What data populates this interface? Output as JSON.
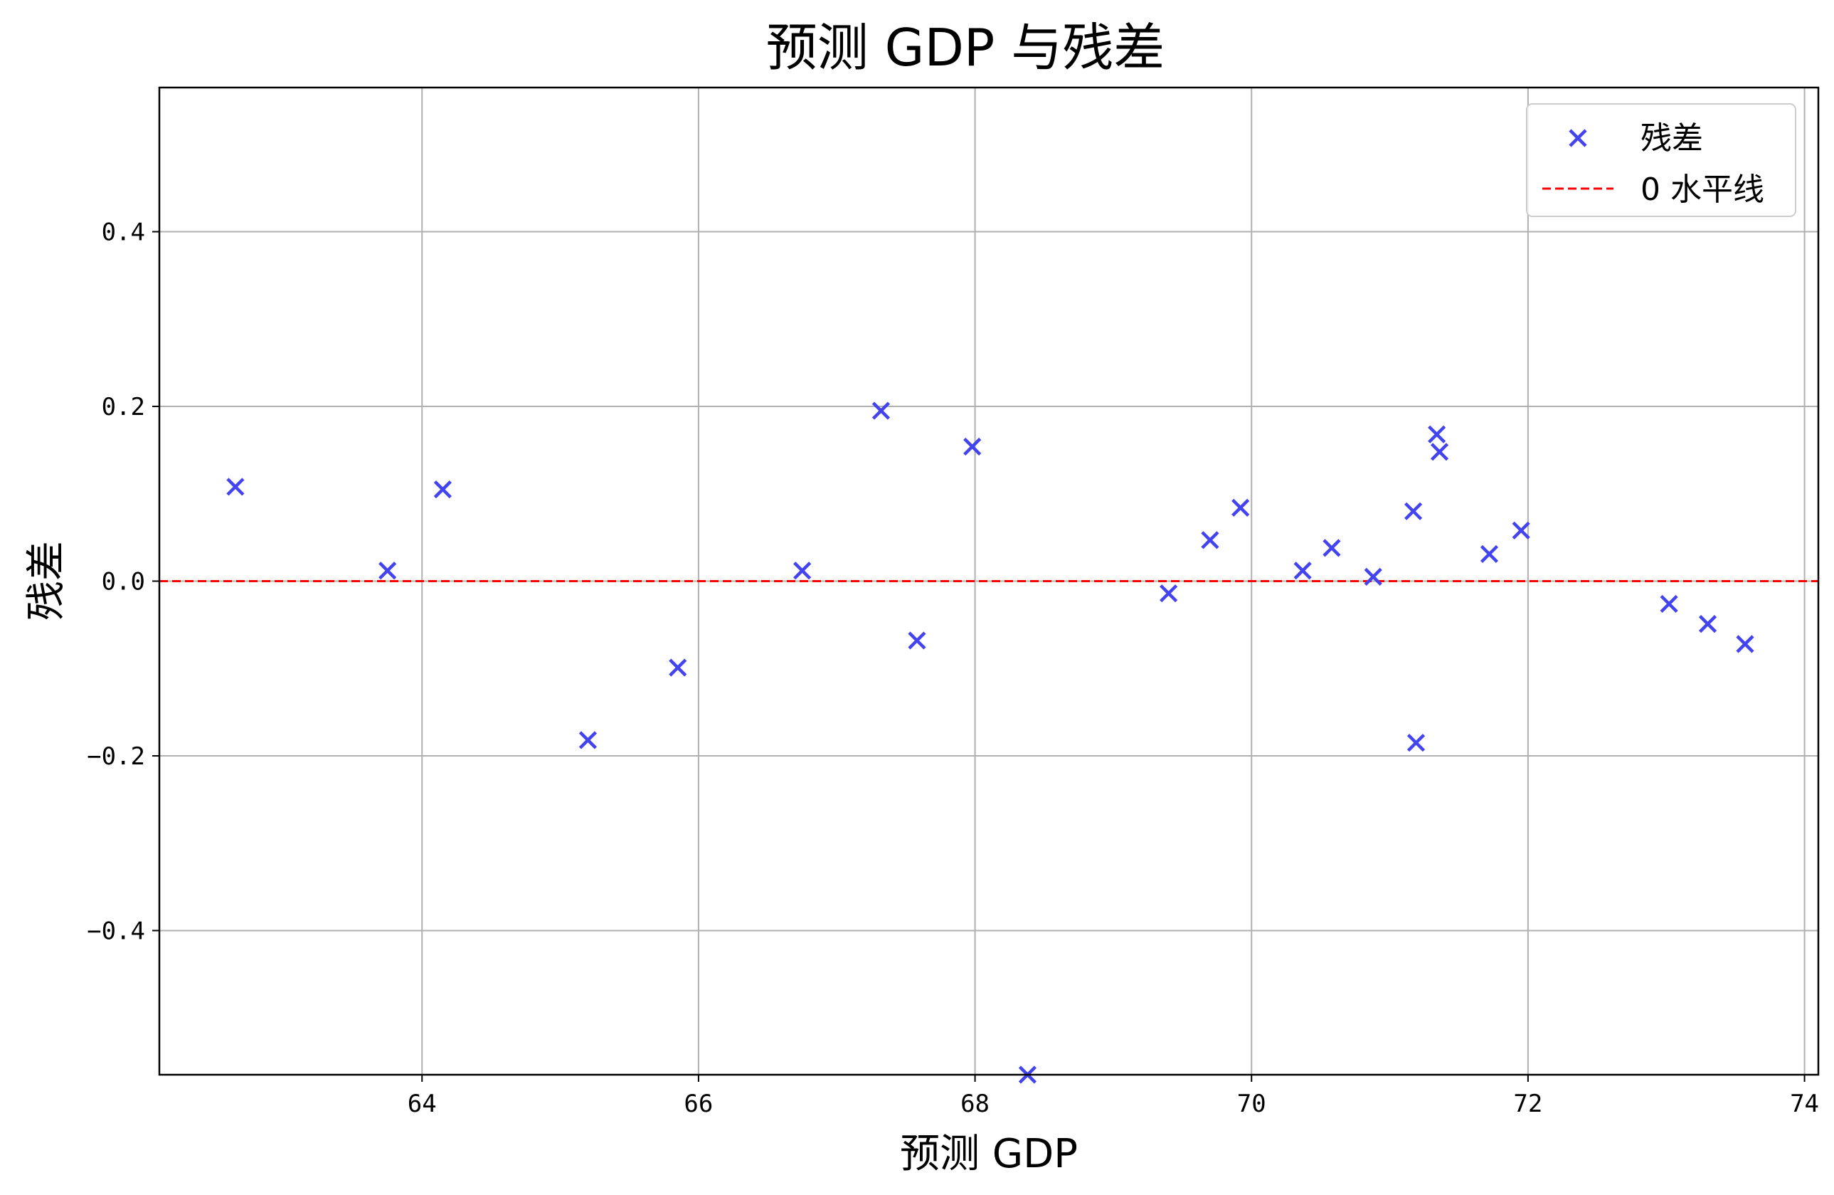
{
  "chart_data": {
    "type": "scatter",
    "title": "预测 GDP 与残差",
    "xlabel": "预测 GDP",
    "ylabel": "残差",
    "xlim": [
      62.1,
      74.1
    ],
    "ylim": [
      -0.565,
      0.565
    ],
    "x_ticks": [
      64,
      66,
      68,
      70,
      72,
      74
    ],
    "x_tick_labels": [
      "64",
      "66",
      "68",
      "70",
      "72",
      "74"
    ],
    "y_ticks": [
      0.4,
      0.2,
      0.0,
      -0.2,
      -0.4
    ],
    "y_tick_labels": [
      "0.4",
      "0.2",
      "0.0",
      "−0.2",
      "−0.4"
    ],
    "grid": true,
    "legend_position": "top-right",
    "series": [
      {
        "name": "残差",
        "marker": "x",
        "color": "#4343f0",
        "points": [
          {
            "x": 62.65,
            "y": 0.108
          },
          {
            "x": 63.75,
            "y": 0.012
          },
          {
            "x": 64.15,
            "y": 0.105
          },
          {
            "x": 65.2,
            "y": -0.182
          },
          {
            "x": 65.85,
            "y": -0.099
          },
          {
            "x": 66.75,
            "y": 0.012
          },
          {
            "x": 67.32,
            "y": 0.195
          },
          {
            "x": 67.58,
            "y": -0.068
          },
          {
            "x": 67.98,
            "y": 0.154
          },
          {
            "x": 68.38,
            "y": -0.565
          },
          {
            "x": 69.4,
            "y": -0.014
          },
          {
            "x": 69.7,
            "y": 0.047
          },
          {
            "x": 69.92,
            "y": 0.084
          },
          {
            "x": 70.37,
            "y": 0.012
          },
          {
            "x": 70.58,
            "y": 0.038
          },
          {
            "x": 70.88,
            "y": 0.005
          },
          {
            "x": 71.17,
            "y": 0.08
          },
          {
            "x": 71.19,
            "y": -0.185
          },
          {
            "x": 71.34,
            "y": 0.168
          },
          {
            "x": 71.36,
            "y": 0.148
          },
          {
            "x": 71.72,
            "y": 0.031
          },
          {
            "x": 71.95,
            "y": 0.058
          },
          {
            "x": 73.02,
            "y": -0.026
          },
          {
            "x": 73.3,
            "y": -0.049
          },
          {
            "x": 73.57,
            "y": -0.072
          }
        ]
      },
      {
        "name": "0 水平线",
        "type": "hline",
        "y": 0,
        "color": "#ff0000",
        "style": "dashed"
      }
    ]
  }
}
